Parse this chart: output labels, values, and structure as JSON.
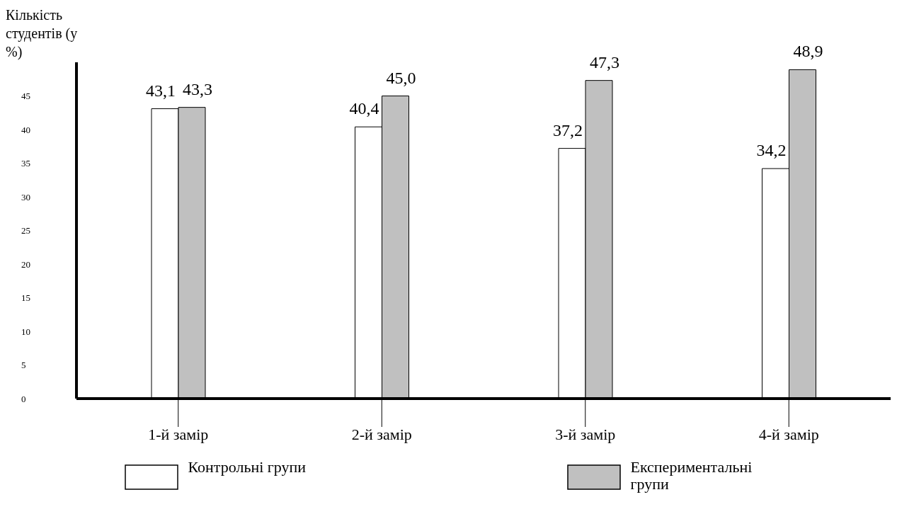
{
  "chart_data": {
    "type": "bar",
    "ylabel": "Кількість студентів (у %)",
    "categories": [
      "1-й замір",
      "2-й замір",
      "3-й замір",
      "4-й замір"
    ],
    "series": [
      {
        "name": "Контрольні групи",
        "color": "#ffffff",
        "values": [
          43.1,
          40.4,
          37.2,
          34.2
        ],
        "value_labels": [
          "43,1",
          "40,4",
          "37,2",
          "34,2"
        ]
      },
      {
        "name": "Експериментальні групи",
        "color": "#c0c0c0",
        "values": [
          43.3,
          45.0,
          47.3,
          48.9
        ],
        "value_labels": [
          "43,3",
          "45,0",
          "47,3",
          "48,9"
        ]
      }
    ],
    "ylim": [
      0,
      50
    ],
    "yticks": [
      0,
      5,
      10,
      15,
      20,
      25,
      30,
      35,
      40,
      45
    ],
    "grid": false,
    "legend": "bottom"
  }
}
